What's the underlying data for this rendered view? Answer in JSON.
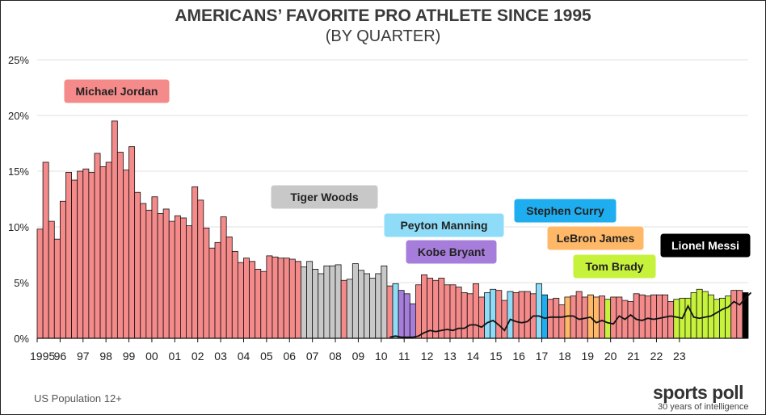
{
  "header": {
    "title": "AMERICANS’ FAVORITE PRO ATHLETE SINCE 1995",
    "subtitle": "(BY QUARTER)"
  },
  "footnote": "US Population 12+",
  "brand": {
    "name": "sports poll",
    "tagline": "30 years of intelligence"
  },
  "colors": {
    "Michael Jordan": "#f48a8a",
    "Tiger Woods": "#c8c8c8",
    "Peyton Manning": "#8fdcf8",
    "Kobe Bryant": "#a77ddb",
    "Stephen Curry": "#1eaef0",
    "LeBron James": "#ffb867",
    "Tom Brady": "#c7f23c",
    "Lionel Messi": "#000000",
    "messi_line": "#111111"
  },
  "chart_data": {
    "type": "bar",
    "title": "AMERICANS’ FAVORITE PRO ATHLETE SINCE 1995",
    "subtitle": "(BY QUARTER)",
    "ylim": [
      0,
      25
    ],
    "y_ticks": [
      "0%",
      "5%",
      "10%",
      "15%",
      "20%",
      "25%"
    ],
    "x_ticks": [
      "1995",
      "96",
      "97",
      "98",
      "99",
      "00",
      "01",
      "02",
      "03",
      "04",
      "05",
      "06",
      "07",
      "08",
      "09",
      "10",
      "11",
      "12",
      "13",
      "14",
      "15",
      "16",
      "17",
      "18",
      "19",
      "20",
      "21",
      "22",
      "23"
    ],
    "grid": true,
    "legend": "labels placed inside plot",
    "values": [
      9.8,
      15.8,
      10.5,
      8.9,
      12.3,
      14.9,
      14.2,
      15.0,
      15.2,
      14.9,
      16.6,
      15.4,
      15.8,
      19.5,
      16.7,
      15.1,
      17.2,
      13.1,
      12.1,
      11.5,
      12.7,
      11.2,
      11.6,
      10.5,
      11.0,
      10.8,
      10.1,
      13.6,
      12.4,
      9.9,
      8.1,
      8.6,
      10.9,
      9.1,
      7.8,
      6.8,
      7.2,
      6.9,
      6.2,
      6.0,
      7.4,
      7.3,
      7.2,
      7.2,
      7.1,
      6.9,
      6.4,
      6.9,
      6.2,
      5.8,
      6.5,
      6.5,
      6.6,
      5.2,
      5.3,
      6.7,
      6.1,
      5.8,
      5.4,
      5.8,
      6.5,
      4.7,
      4.9,
      4.3,
      4.0,
      3.1,
      4.8,
      5.7,
      5.4,
      5.2,
      5.4,
      4.8,
      4.8,
      4.6,
      4.1,
      4.0,
      4.9,
      3.7,
      4.1,
      4.4,
      4.3,
      3.4,
      4.2,
      4.1,
      4.2,
      4.2,
      4.0,
      4.9,
      3.9,
      3.5,
      3.6,
      3.0,
      3.7,
      3.8,
      4.2,
      3.7,
      3.9,
      3.7,
      3.8,
      3.5,
      3.7,
      3.7,
      3.4,
      3.3,
      4.0,
      3.9,
      3.8,
      3.9,
      3.9,
      3.9,
      3.3,
      3.5,
      3.6,
      3.6,
      4.1,
      4.4,
      4.2,
      3.9,
      3.5,
      3.6,
      3.8,
      4.3,
      4.3,
      4.1
    ],
    "bar_athletes": [
      "Michael Jordan",
      "Michael Jordan",
      "Michael Jordan",
      "Michael Jordan",
      "Michael Jordan",
      "Michael Jordan",
      "Michael Jordan",
      "Michael Jordan",
      "Michael Jordan",
      "Michael Jordan",
      "Michael Jordan",
      "Michael Jordan",
      "Michael Jordan",
      "Michael Jordan",
      "Michael Jordan",
      "Michael Jordan",
      "Michael Jordan",
      "Michael Jordan",
      "Michael Jordan",
      "Michael Jordan",
      "Michael Jordan",
      "Michael Jordan",
      "Michael Jordan",
      "Michael Jordan",
      "Michael Jordan",
      "Michael Jordan",
      "Michael Jordan",
      "Michael Jordan",
      "Michael Jordan",
      "Michael Jordan",
      "Michael Jordan",
      "Michael Jordan",
      "Michael Jordan",
      "Michael Jordan",
      "Michael Jordan",
      "Michael Jordan",
      "Michael Jordan",
      "Michael Jordan",
      "Michael Jordan",
      "Michael Jordan",
      "Michael Jordan",
      "Michael Jordan",
      "Michael Jordan",
      "Michael Jordan",
      "Michael Jordan",
      "Michael Jordan",
      "Tiger Woods",
      "Tiger Woods",
      "Tiger Woods",
      "Tiger Woods",
      "Tiger Woods",
      "Tiger Woods",
      "Tiger Woods",
      "Michael Jordan",
      "Tiger Woods",
      "Tiger Woods",
      "Tiger Woods",
      "Tiger Woods",
      "Tiger Woods",
      "Tiger Woods",
      "Tiger Woods",
      "Michael Jordan",
      "Peyton Manning",
      "Kobe Bryant",
      "Kobe Bryant",
      "Kobe Bryant",
      "Michael Jordan",
      "Michael Jordan",
      "Michael Jordan",
      "Michael Jordan",
      "Michael Jordan",
      "Michael Jordan",
      "Michael Jordan",
      "Michael Jordan",
      "Michael Jordan",
      "Michael Jordan",
      "Michael Jordan",
      "Michael Jordan",
      "Peyton Manning",
      "Peyton Manning",
      "Michael Jordan",
      "Michael Jordan",
      "Peyton Manning",
      "Michael Jordan",
      "Michael Jordan",
      "Michael Jordan",
      "Michael Jordan",
      "Peyton Manning",
      "Stephen Curry",
      "Michael Jordan",
      "Michael Jordan",
      "Michael Jordan",
      "LeBron James",
      "Michael Jordan",
      "Michael Jordan",
      "Michael Jordan",
      "LeBron James",
      "LeBron James",
      "Michael Jordan",
      "Tom Brady",
      "Michael Jordan",
      "Michael Jordan",
      "Michael Jordan",
      "Michael Jordan",
      "Michael Jordan",
      "Michael Jordan",
      "Michael Jordan",
      "Michael Jordan",
      "Michael Jordan",
      "Michael Jordan",
      "Michael Jordan",
      "Tom Brady",
      "Tom Brady",
      "Tom Brady",
      "Tom Brady",
      "Tom Brady",
      "Tom Brady",
      "Tom Brady",
      "Tom Brady",
      "Tom Brady",
      "Tom Brady",
      "Michael Jordan",
      "Michael Jordan",
      "Lionel Messi"
    ],
    "series": [
      {
        "name": "Lionel Messi",
        "type": "line",
        "start_index": 61,
        "values": [
          0.1,
          0.2,
          0.1,
          0.1,
          0.1,
          0.2,
          0.5,
          0.7,
          0.6,
          0.7,
          0.8,
          0.7,
          0.9,
          0.9,
          1.2,
          1.2,
          1.0,
          1.4,
          1.6,
          1.2,
          0.7,
          1.7,
          1.5,
          1.4,
          1.5,
          2.0,
          2.0,
          1.8,
          1.9,
          1.9,
          1.9,
          2.0,
          2.0,
          1.7,
          1.8,
          1.9,
          1.4,
          1.6,
          1.4,
          1.3,
          2.0,
          1.7,
          2.1,
          1.7,
          1.6,
          1.8,
          1.7,
          1.8,
          1.9,
          2.0,
          1.9,
          1.8,
          2.9,
          1.9,
          1.8,
          1.9,
          2.0,
          2.3,
          2.6,
          2.8,
          3.3,
          3.0,
          3.6,
          4.1
        ]
      }
    ],
    "athlete_labels": [
      {
        "name": "Michael Jordan"
      },
      {
        "name": "Tiger Woods"
      },
      {
        "name": "Peyton Manning"
      },
      {
        "name": "Kobe Bryant"
      },
      {
        "name": "Stephen Curry"
      },
      {
        "name": "LeBron James"
      },
      {
        "name": "Tom Brady"
      },
      {
        "name": "Lionel Messi"
      }
    ]
  }
}
